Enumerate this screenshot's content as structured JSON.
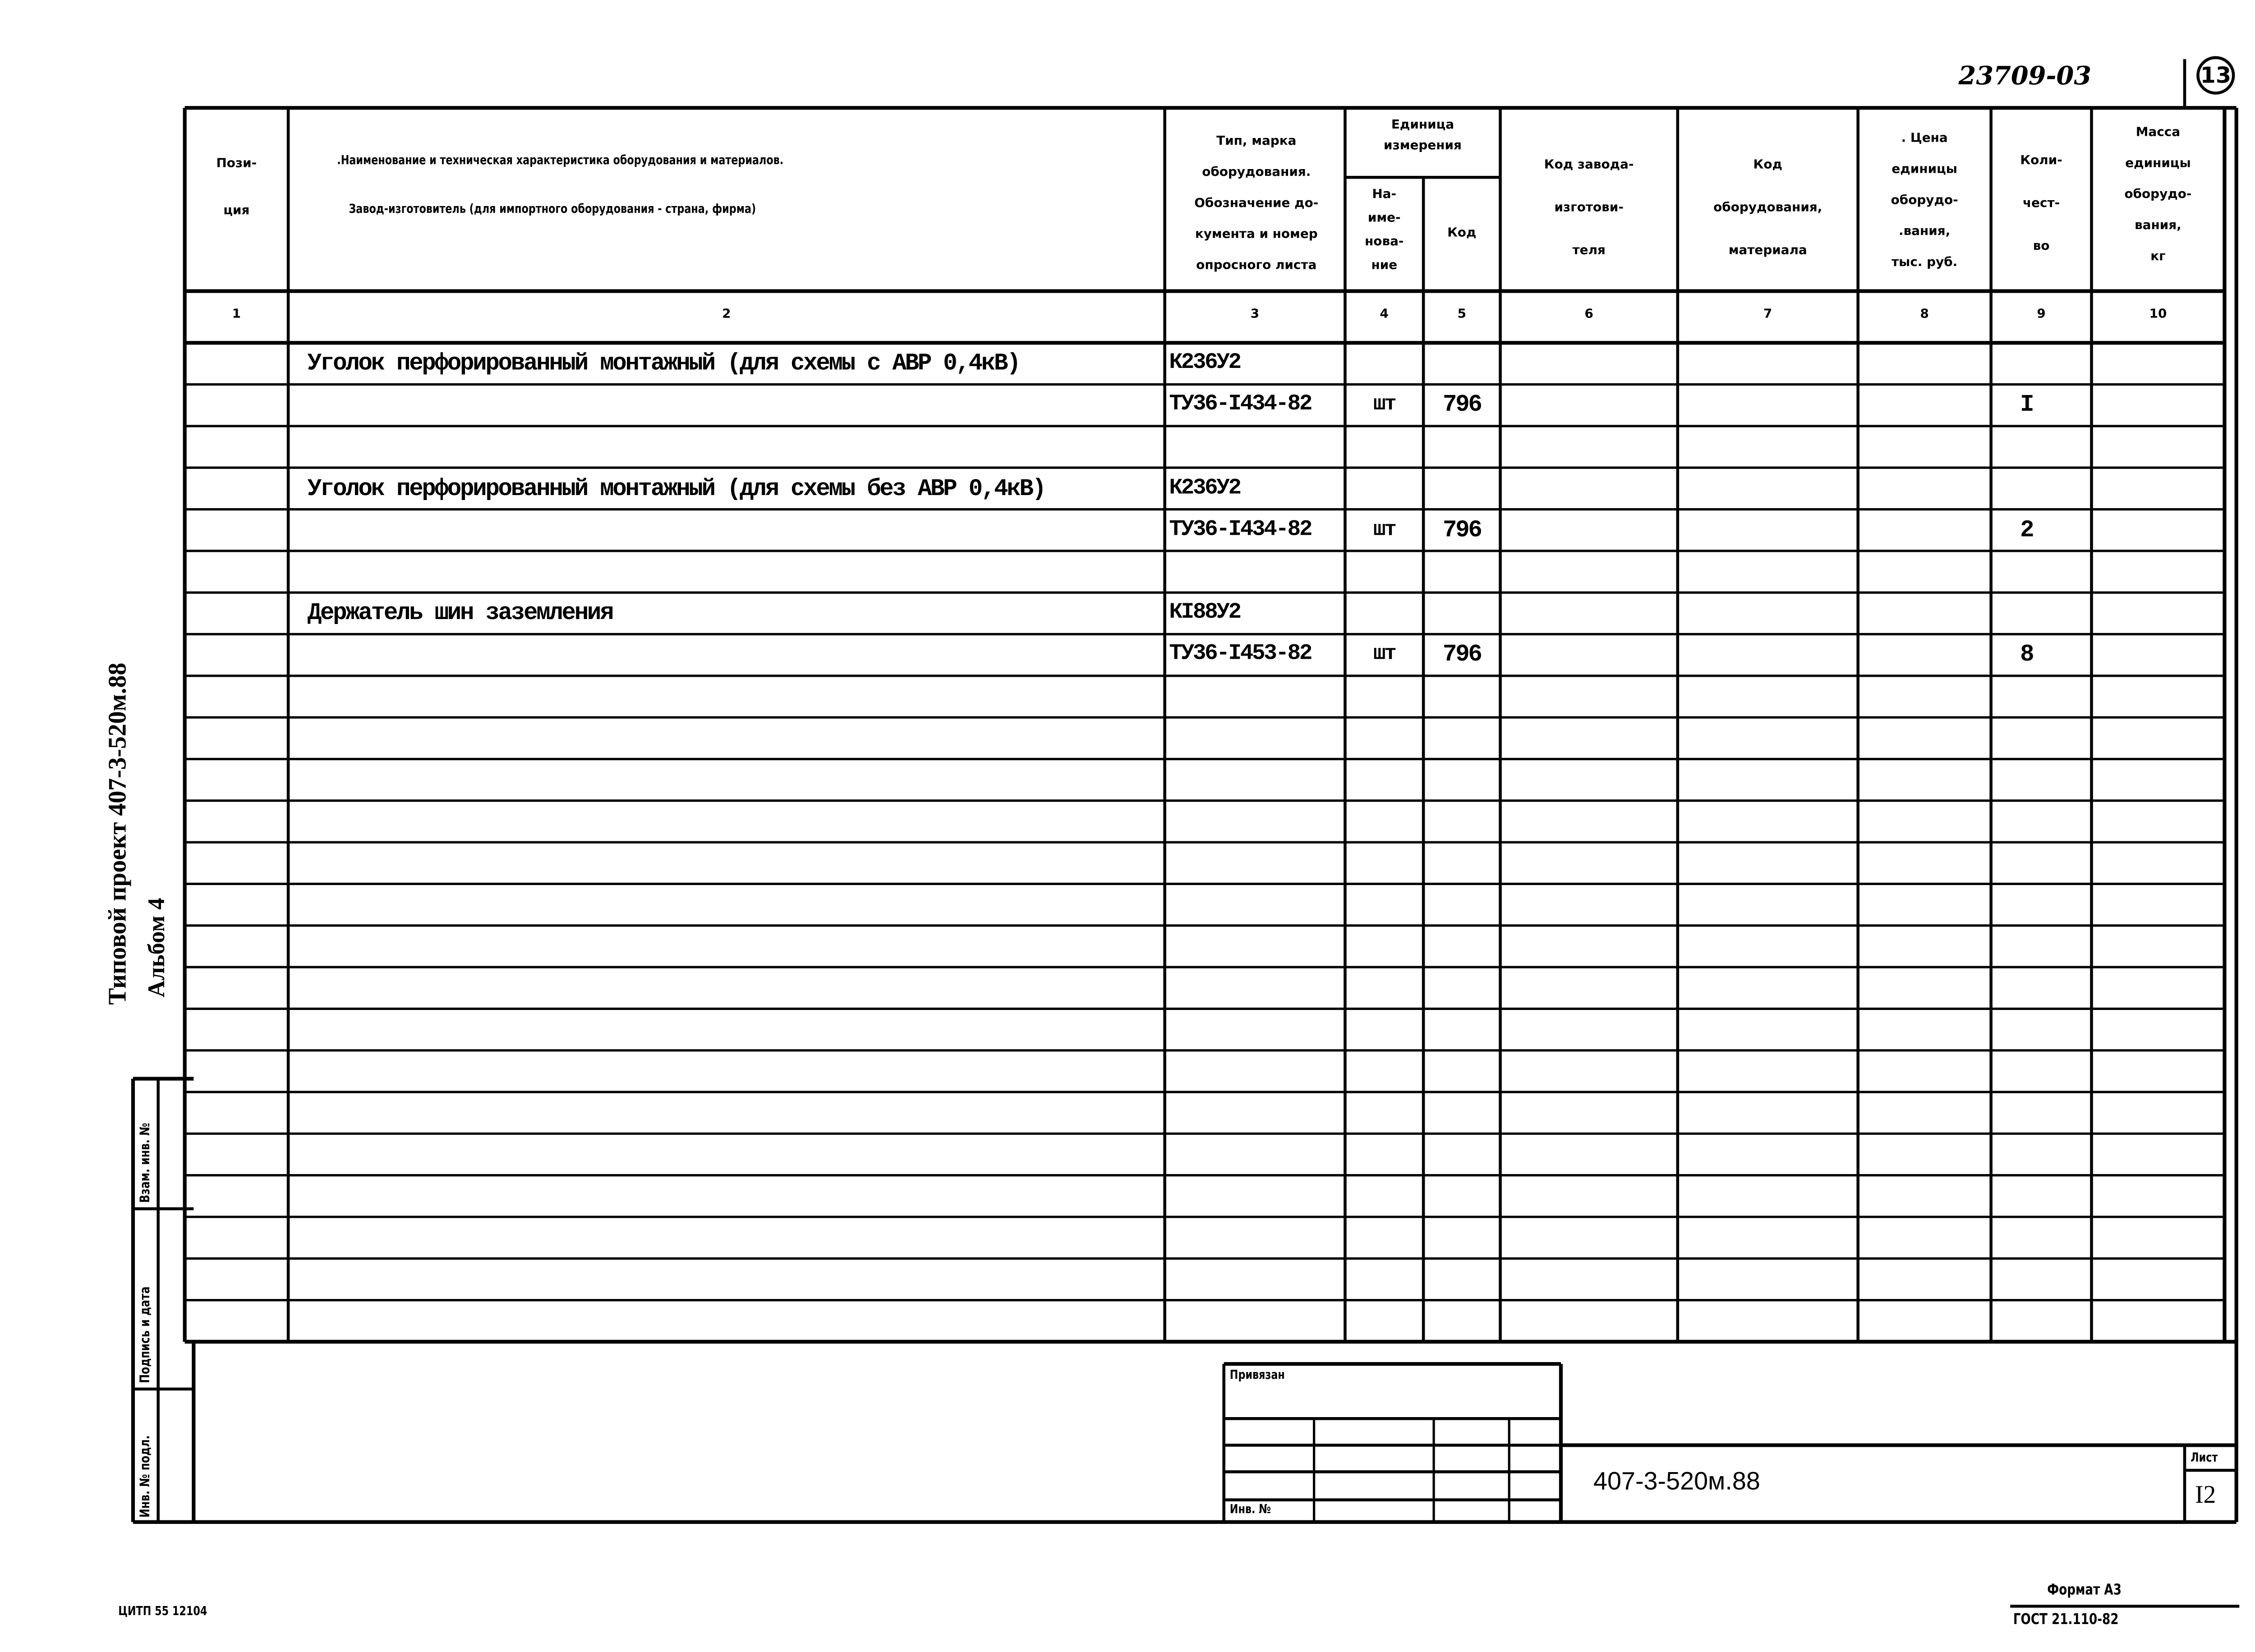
{
  "header_right": {
    "doc_number": "23709-03",
    "page_circle": "13"
  },
  "columns": {
    "c1": "Пози-\nция",
    "c2_line1": ".Наименование и техническая характеристика оборудования и материалов.",
    "c2_line2": "Завод-изготовитель (для импортного оборудования - страна, фирма)",
    "c3": "Тип, марка\nоборудования.\nОбозначение до-\nкумента и номер\nопросного листа",
    "unit_group": "Единица\nизмерения",
    "c4": "На-\nиме-\nнова-\nние",
    "c5": "Код",
    "c6": "Код завода-\nизготови-\nтеля",
    "c7": "Код\nоборудования,\nматериала",
    "c8": ". Цена\nединицы\nоборудо-\n.вания,\nтыс. руб.",
    "c9": "Коли-\nчест-\nво",
    "c10": "Масса\nединицы\nоборудо-\nвания,\nкг"
  },
  "column_numbers": [
    "1",
    "2",
    "3",
    "4",
    "5",
    "6",
    "7",
    "8",
    "9",
    "10"
  ],
  "rows": [
    {
      "row": 1,
      "name": "Уголок перфорированный монтажный (для схемы с АВР 0,4кВ)",
      "type": "К236У2"
    },
    {
      "row": 2,
      "type": "ТУ36-I434-82",
      "unit": "шт",
      "code": "796",
      "qty": "I"
    },
    {
      "row": 4,
      "name": "Уголок перфорированный монтажный (для схемы без АВР 0,4кВ)",
      "type": "К236У2"
    },
    {
      "row": 5,
      "type": "ТУ36-I434-82",
      "unit": "шт",
      "code": "796",
      "qty": "2"
    },
    {
      "row": 7,
      "name": "Держатель шин заземления",
      "type": "КI88У2"
    },
    {
      "row": 8,
      "type": "ТУ36-I453-82",
      "unit": "шт",
      "code": "796",
      "qty": "8"
    }
  ],
  "side": {
    "project": "Типовой проект 407-3-520м.88",
    "album": "Альбом 4",
    "stamp": [
      "Взам. инв. №",
      "Подпись и дата",
      "Инв. № подл."
    ]
  },
  "title_block": {
    "attached": "Привязан",
    "inv_no": "Инв. №",
    "designation": "407-3-520м.88",
    "sheet_label": "Лист",
    "sheet_number": "I2"
  },
  "footer": {
    "left": "ЦИТП 55 12104",
    "format": "Формат А3",
    "standard": "ГОСТ 21.110-82"
  }
}
